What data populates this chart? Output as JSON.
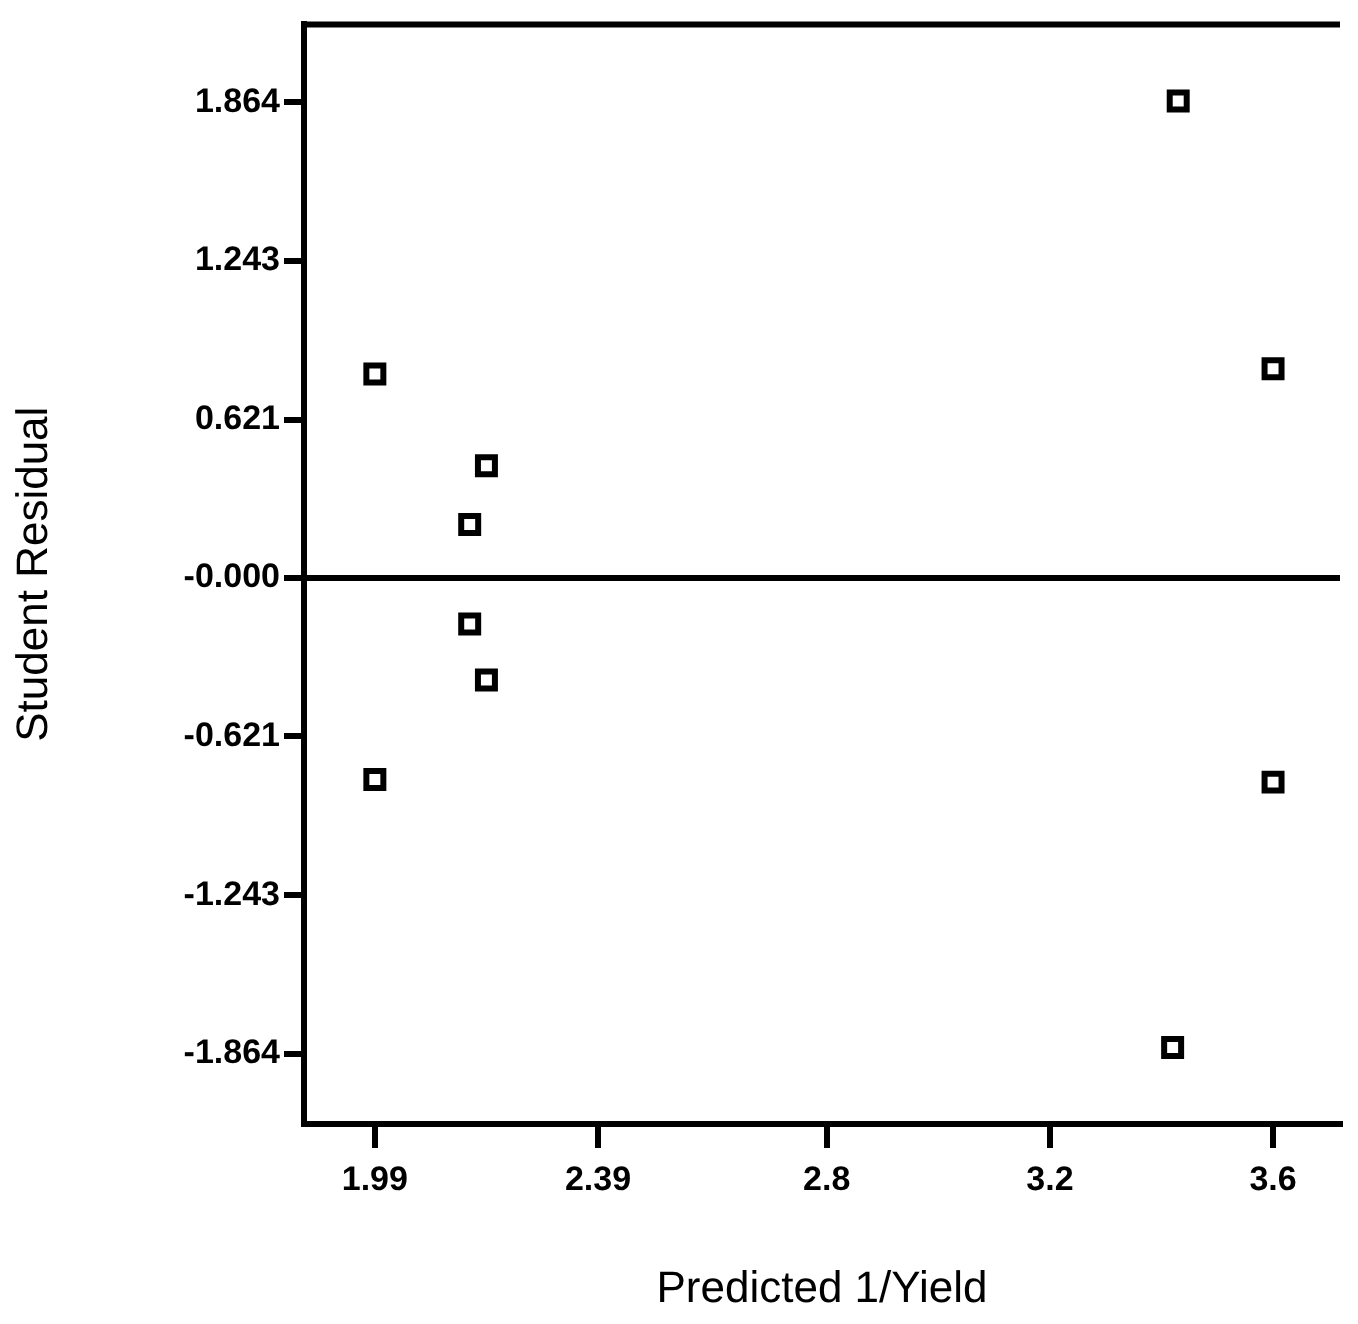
{
  "chart_data": {
    "type": "scatter",
    "xlabel": "Predicted 1/Yield",
    "ylabel": "Student Residual",
    "x": [
      1.99,
      1.99,
      2.16,
      2.16,
      2.19,
      2.19,
      3.43,
      3.42,
      3.6,
      3.6
    ],
    "series": [
      {
        "color": "#000000",
        "values": [
          0.8,
          -0.79,
          0.21,
          -0.18,
          0.44,
          -0.4,
          1.87,
          -1.84,
          0.82,
          -0.8
        ]
      }
    ],
    "marker": "square",
    "grid": false,
    "legend": false,
    "xlim": [
      1.863,
      3.72
    ],
    "xticks": [
      1.99,
      2.39,
      2.8,
      3.2,
      3.6
    ],
    "ylim": [
      -2.14,
      2.17
    ],
    "yticks": [
      -1.864,
      -1.243,
      -0.621,
      {
        "value": 0,
        "label": "-0.000"
      },
      0.621,
      1.243,
      1.864
    ],
    "ref_lines": [
      {
        "axis": "y",
        "value": 0,
        "color": "#000000"
      }
    ]
  }
}
